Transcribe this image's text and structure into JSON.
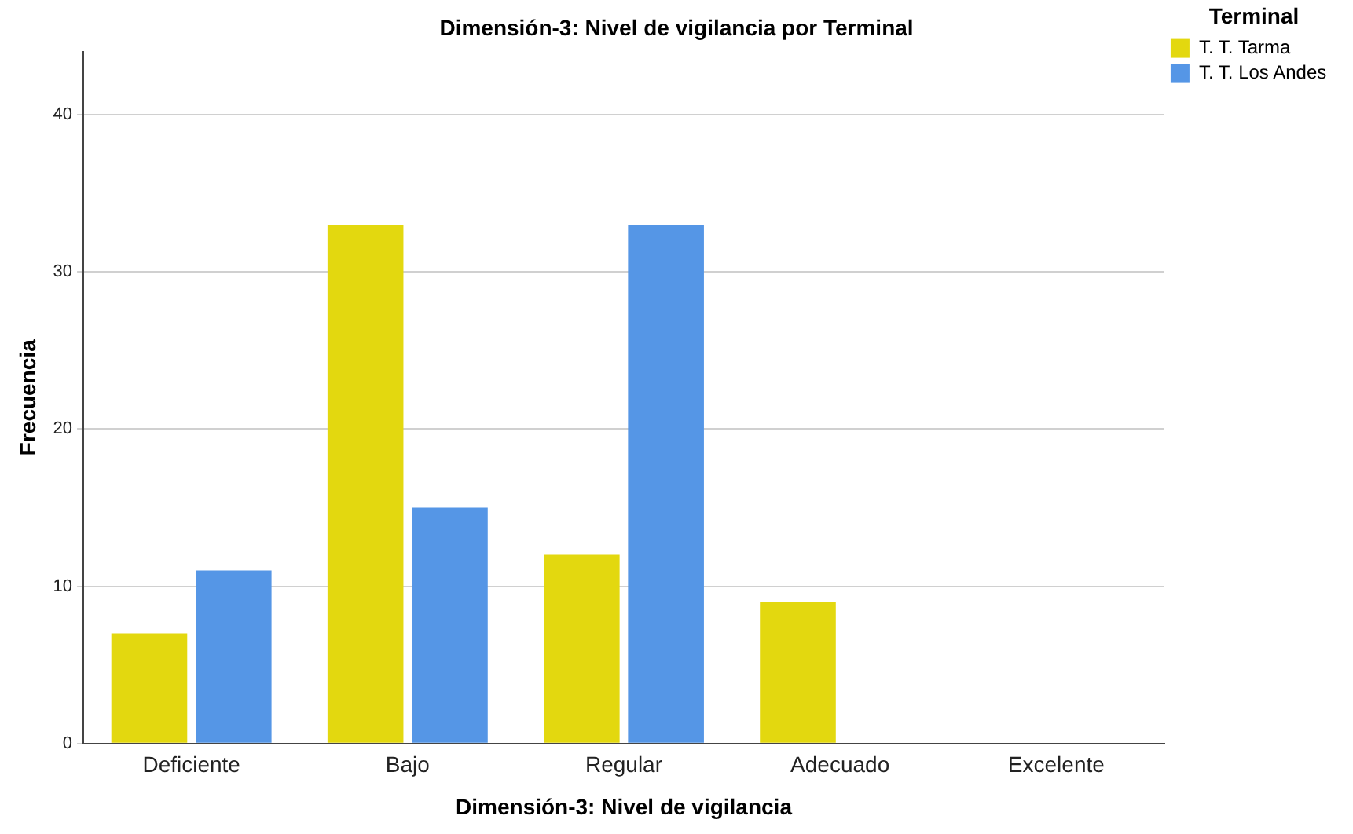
{
  "chart_data": {
    "type": "bar",
    "title": "Dimensión-3: Nivel de vigilancia por Terminal",
    "xlabel": "Dimensión-3: Nivel de vigilancia",
    "ylabel": "Frecuencia",
    "legend_title": "Terminal",
    "categories": [
      "Deficiente",
      "Bajo",
      "Regular",
      "Adecuado",
      "Excelente"
    ],
    "series": [
      {
        "name": "T. T. Tarma",
        "color": "#e3d80f",
        "values": [
          7,
          33,
          12,
          9,
          0
        ]
      },
      {
        "name": "T. T. Los Andes",
        "color": "#5596e6",
        "values": [
          11,
          15,
          33,
          0,
          0
        ]
      }
    ],
    "ylim": [
      0,
      44
    ],
    "yticks": [
      0,
      10,
      20,
      30,
      40
    ],
    "grid": "y",
    "legend": "top right"
  }
}
